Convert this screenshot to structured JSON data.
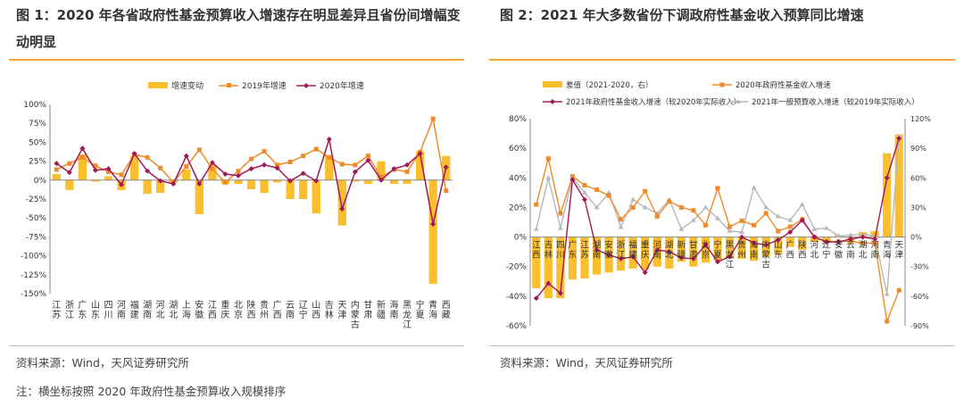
{
  "fig1": {
    "title": "图 1：2020 年各省政府性基金预算收入增速存在明显差异且省份间增幅变动明显",
    "source": "资料来源：Wind，天风证券研究所",
    "note": "注：横坐标按照 2020 年政府性基金预算收入规模排序"
  },
  "fig2": {
    "title": "图 2：2021 年大多数省份下调政府性基金收入预算同比增速",
    "source": "资料来源：Wind，天风证券研究所"
  },
  "colors": {
    "bar": "#fbbf2d",
    "orange": "#f08a29",
    "purple": "#a0185a",
    "grey": "#b8b8b8",
    "accent": "#f4a636"
  },
  "chart_data": [
    {
      "type": "bar",
      "categories": [
        "江苏",
        "浙江",
        "广东",
        "山东",
        "四川",
        "河南",
        "福建",
        "湖南",
        "河北",
        "湖北",
        "上海",
        "安徽",
        "江西",
        "重庆",
        "北京",
        "陕西",
        "贵州",
        "广西",
        "云南",
        "辽宁",
        "山西",
        "吉林",
        "天津",
        "内蒙古",
        "甘肃",
        "新疆",
        "海南",
        "黑龙江",
        "宁夏",
        "青海",
        "西藏"
      ],
      "ylim": [
        -150,
        100
      ],
      "yticks": [
        "100%",
        "75%",
        "50%",
        "25%",
        "0%",
        "-25%",
        "-50%",
        "-75%",
        "-100%",
        "-125%",
        "-150%"
      ],
      "series": [
        {
          "name": "增速变动",
          "kind": "bar",
          "values": [
            8,
            -13,
            34,
            -2,
            5,
            -13,
            32,
            -18,
            -17,
            -3,
            14,
            -45,
            20,
            -5,
            -5,
            -12,
            -17,
            -3,
            -25,
            -25,
            -44,
            33,
            -60,
            -2,
            -5,
            25,
            -5,
            -5,
            38,
            -137,
            32
          ]
        },
        {
          "name": "2019年增速",
          "kind": "line",
          "values": [
            14,
            22,
            30,
            19,
            11,
            7,
            34,
            30,
            16,
            -3,
            18,
            40,
            15,
            -3,
            12,
            28,
            38,
            20,
            24,
            32,
            41,
            30,
            21,
            20,
            32,
            4,
            14,
            11,
            37,
            81,
            -14
          ]
        },
        {
          "name": "2020年增速",
          "kind": "line",
          "values": [
            22,
            10,
            42,
            13,
            15,
            -6,
            35,
            12,
            -1,
            -5,
            32,
            -5,
            23,
            8,
            6,
            15,
            20,
            16,
            -1,
            9,
            -1,
            54,
            -38,
            11,
            26,
            0,
            15,
            20,
            35,
            -58,
            17
          ]
        }
      ]
    },
    {
      "type": "bar",
      "categories": [
        "江西",
        "吉林",
        "四川",
        "广东",
        "江苏",
        "湖南",
        "安徽",
        "浙江",
        "福建",
        "重庆",
        "河南",
        "湖北",
        "新疆",
        "甘肃",
        "北京",
        "宁夏",
        "黑龙江",
        "贵州",
        "海南",
        "内蒙古",
        "山东",
        "广西",
        "陕西",
        "河北",
        "辽宁",
        "安徽",
        "云南",
        "湖北",
        "河南",
        "青海",
        "天津"
      ],
      "ylim_left": [
        -60,
        80
      ],
      "ylim_right": [
        -90,
        120
      ],
      "yticks_left": [
        "80%",
        "60%",
        "40%",
        "20%",
        "0%",
        "-20%",
        "-40%",
        "-60%"
      ],
      "yticks_right": [
        "120%",
        "90%",
        "60%",
        "30%",
        "0%",
        "-30%",
        "-60%",
        "-90%"
      ],
      "series": [
        {
          "name": "差值（2021-2020，右）",
          "kind": "bar",
          "axis": "right",
          "values": [
            -52,
            -62,
            -62,
            -43,
            -42,
            -38,
            -36,
            -34,
            -32,
            -33,
            -30,
            -32,
            -25,
            -30,
            -26,
            -24,
            -22,
            -22,
            -24,
            -20,
            -18,
            -10,
            -13,
            -5,
            -6,
            2,
            -4,
            5,
            6,
            85,
            104
          ]
        },
        {
          "name": "2020年政府性基金收入增速",
          "kind": "line",
          "axis": "left",
          "values": [
            22,
            53,
            16,
            41,
            35,
            32,
            28,
            12,
            20,
            31,
            14,
            24,
            20,
            18,
            8,
            33,
            7,
            11,
            8,
            16,
            4,
            7,
            12,
            0,
            -3,
            -3,
            -3,
            -4,
            -4,
            -57,
            -36
          ]
        },
        {
          "name": "2021年政府性基金收入增速（较2020年实际收入）",
          "kind": "line",
          "axis": "right",
          "values": [
            -62,
            -47,
            -57,
            58,
            38,
            -13,
            -18,
            -22,
            -20,
            -36,
            -13,
            -15,
            -21,
            -22,
            -8,
            -25,
            -20,
            0,
            -6,
            -8,
            -3,
            5,
            17,
            0,
            -5,
            -5,
            -2,
            0,
            -2,
            60,
            100
          ]
        },
        {
          "name": "2021年一般预算收入增速（较2019年实际收入）",
          "kind": "line",
          "axis": "right",
          "values": [
            8,
            60,
            9,
            60,
            45,
            30,
            45,
            10,
            38,
            30,
            24,
            38,
            8,
            17,
            30,
            19,
            6,
            5,
            50,
            30,
            21,
            17,
            33,
            8,
            9,
            1,
            2,
            3,
            1,
            -58,
            102
          ]
        }
      ]
    }
  ]
}
